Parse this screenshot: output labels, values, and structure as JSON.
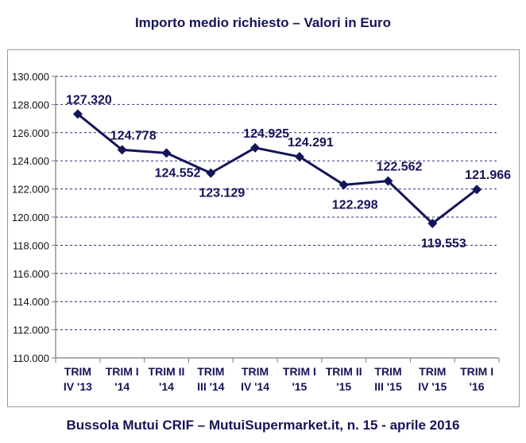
{
  "header": {
    "title": "Importo medio richiesto – Valori in Euro"
  },
  "footer": {
    "source": "Bussola Mutui CRIF – MutuiSupermarket.it, n. 15 - aprile 2016"
  },
  "chart_data": {
    "type": "line",
    "title": "Importo medio richiesto – Valori in Euro",
    "xlabel": "",
    "ylabel": "",
    "ylim": [
      110000,
      130000
    ],
    "ytick_step": 2000,
    "ytick_labels": [
      "110.000",
      "112.000",
      "114.000",
      "116.000",
      "118.000",
      "120.000",
      "122.000",
      "124.000",
      "126.000",
      "128.000",
      "130.000"
    ],
    "grid": true,
    "categories": [
      [
        "TRIM",
        "IV '13"
      ],
      [
        "TRIM I",
        "'14"
      ],
      [
        "TRIM II",
        "'14"
      ],
      [
        "TRIM",
        "III '14"
      ],
      [
        "TRIM",
        "IV '14"
      ],
      [
        "TRIM I",
        "'15"
      ],
      [
        "TRIM II",
        "'15"
      ],
      [
        "TRIM",
        "III '15"
      ],
      [
        "TRIM",
        "IV '15"
      ],
      [
        "TRIM I",
        "'16"
      ]
    ],
    "series": [
      {
        "name": "Importo medio richiesto",
        "values": [
          127320,
          124778,
          124552,
          123129,
          124925,
          124291,
          122298,
          122562,
          119553,
          121966
        ],
        "labels": [
          "127.320",
          "124.778",
          "124.552",
          "123.129",
          "124.925",
          "124.291",
          "122.298",
          "122.562",
          "119.553",
          "121.966"
        ],
        "label_positions": [
          "above",
          "above",
          "below",
          "below",
          "above",
          "above",
          "below",
          "above",
          "below",
          "above"
        ]
      }
    ],
    "colors": {
      "line": "#14145a",
      "grid": "#2b2b7a",
      "axis": "#7a7a7a",
      "text": "#14145a"
    }
  }
}
